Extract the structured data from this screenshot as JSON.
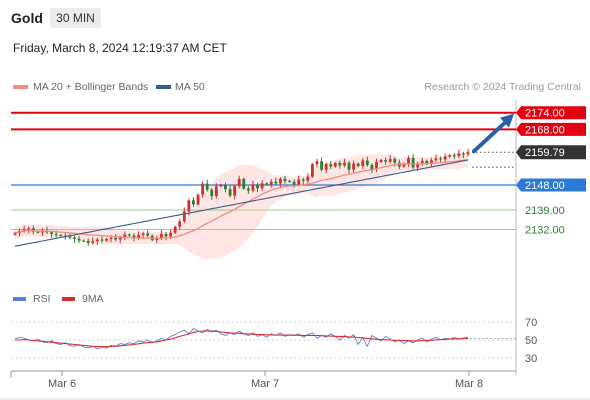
{
  "header": {
    "title": "Gold",
    "timeframe": "30 MIN",
    "datetime": "Friday, March 8, 2024 12:19:37 AM CET"
  },
  "colors": {
    "candle_up": "#d32f2f",
    "candle_down": "#2e7d32",
    "ma20": "#f28b82",
    "bollinger_fill": "#fde3e1",
    "ma50": "#3f5a8e",
    "resistance": "#e3000f",
    "pivot": "#2b7bd6",
    "support": "#9ccc90",
    "rsi": "#5b7fd6",
    "rsi_ma": "#d32f2f",
    "arrow": "#2d5fa8",
    "price_box": "#333333"
  },
  "chart_data": {
    "type": "candlestick",
    "title": "Gold",
    "timeframe": "30 MIN",
    "credit": "Research © 2024 Trading Central",
    "legend": [
      {
        "name": "MA 20 + Bollinger Bands",
        "color": "#f28b82"
      },
      {
        "name": "MA 50",
        "color": "#3f5a8e"
      }
    ],
    "x_ticks": [
      "Mar 6",
      "Mar 7",
      "Mar 8"
    ],
    "ylim": [
      2116,
      2180
    ],
    "current_price": "2159.79",
    "levels": [
      {
        "label": "2174.00",
        "value": 2174.0,
        "kind": "resistance"
      },
      {
        "label": "2168.00",
        "value": 2168.0,
        "kind": "resistance"
      },
      {
        "label": "2148.00",
        "value": 2148.0,
        "kind": "pivot"
      },
      {
        "label": "2139.00",
        "value": 2139.0,
        "kind": "support"
      },
      {
        "label": "2132.00",
        "value": 2132.0,
        "kind": "support"
      }
    ],
    "arrow_target": 2174.0,
    "close_series": [
      2130.8,
      2131.5,
      2132.0,
      2132.4,
      2131.2,
      2130.9,
      2131.6,
      2131.0,
      2130.4,
      2130.0,
      2129.8,
      2129.5,
      2129.1,
      2128.6,
      2128.0,
      2127.9,
      2127.2,
      2127.8,
      2128.4,
      2128.0,
      2128.6,
      2129.0,
      2128.4,
      2129.1,
      2130.2,
      2129.8,
      2128.9,
      2130.0,
      2130.6,
      2129.8,
      2128.2,
      2128.9,
      2130.4,
      2129.5,
      2130.8,
      2133.0,
      2134.9,
      2138.5,
      2142.5,
      2141.0,
      2144.5,
      2148.5,
      2146.3,
      2144.0,
      2147.5,
      2148.0,
      2146.5,
      2144.2,
      2147.6,
      2150.2,
      2146.7,
      2146.0,
      2148.2,
      2146.8,
      2148.6,
      2148.2,
      2149.2,
      2148.6,
      2150.2,
      2149.4,
      2149.2,
      2148.2,
      2150.0,
      2149.5,
      2151.0,
      2155.5,
      2156.5,
      2153.5,
      2155.5,
      2154.6,
      2155.9,
      2155.0,
      2156.0,
      2153.5,
      2155.7,
      2154.8,
      2156.8,
      2155.2,
      2153.6,
      2156.3,
      2157.0,
      2156.4,
      2157.4,
      2156.0,
      2154.6,
      2155.7,
      2157.7,
      2154.3,
      2155.8,
      2156.7,
      2155.5,
      2156.9,
      2157.6,
      2157.2,
      2158.2,
      2158.7,
      2158.4,
      2159.3,
      2159.1,
      2159.8
    ],
    "rsi": {
      "legend": [
        {
          "name": "RSI",
          "color": "#5b7fd6"
        },
        {
          "name": "9MA",
          "color": "#d32f2f"
        }
      ],
      "ticks": [
        70,
        50,
        30
      ],
      "ylim": [
        22,
        78
      ],
      "values": [
        51,
        53,
        52,
        50,
        49,
        51,
        48,
        47,
        49,
        46,
        45,
        47,
        44,
        43,
        45,
        42,
        41,
        43,
        40,
        42,
        41,
        44,
        43,
        46,
        45,
        47,
        46,
        49,
        48,
        50,
        47,
        49,
        52,
        50,
        54,
        56,
        59,
        61,
        57,
        63,
        60,
        58,
        62,
        59,
        61,
        57,
        55,
        58,
        56,
        60,
        57,
        55,
        58,
        54,
        56,
        53,
        57,
        55,
        58,
        54,
        56,
        55,
        57,
        53,
        56,
        58,
        52,
        55,
        53,
        57,
        54,
        50,
        55,
        52,
        56,
        45,
        53,
        43,
        55,
        52,
        49,
        54,
        51,
        48,
        50,
        46,
        49,
        47,
        50,
        52,
        48,
        51,
        53,
        50,
        52,
        51,
        53,
        51,
        52,
        53
      ],
      "ma": [
        50,
        50,
        50.5,
        50,
        49.5,
        49,
        48.5,
        48,
        47.5,
        47,
        46.5,
        46,
        45.5,
        45,
        44.5,
        44,
        43.5,
        43,
        42.8,
        42.5,
        42.5,
        43,
        43,
        43.5,
        44,
        44.5,
        45,
        45.8,
        46.5,
        47,
        47.5,
        48,
        49,
        50,
        51,
        52.5,
        54,
        55.5,
        57,
        58.5,
        59.5,
        60,
        60,
        60,
        59.5,
        59,
        58.5,
        58,
        57.8,
        57.5,
        57,
        56.8,
        56.5,
        56.2,
        56,
        55.8,
        55.7,
        55.6,
        55.5,
        55.5,
        55.4,
        55.4,
        55.3,
        55.2,
        55.1,
        55,
        55,
        54.8,
        54.6,
        54.4,
        54.2,
        54,
        53.8,
        53.5,
        53.2,
        52.8,
        52.3,
        51.8,
        51.3,
        50.8,
        50.5,
        50.2,
        50,
        49.7,
        49.5,
        49.3,
        49.1,
        49,
        49,
        49.2,
        49.5,
        49.8,
        50.1,
        50.4,
        50.7,
        51,
        51.2,
        51.4,
        51.6,
        51.8
      ]
    }
  }
}
